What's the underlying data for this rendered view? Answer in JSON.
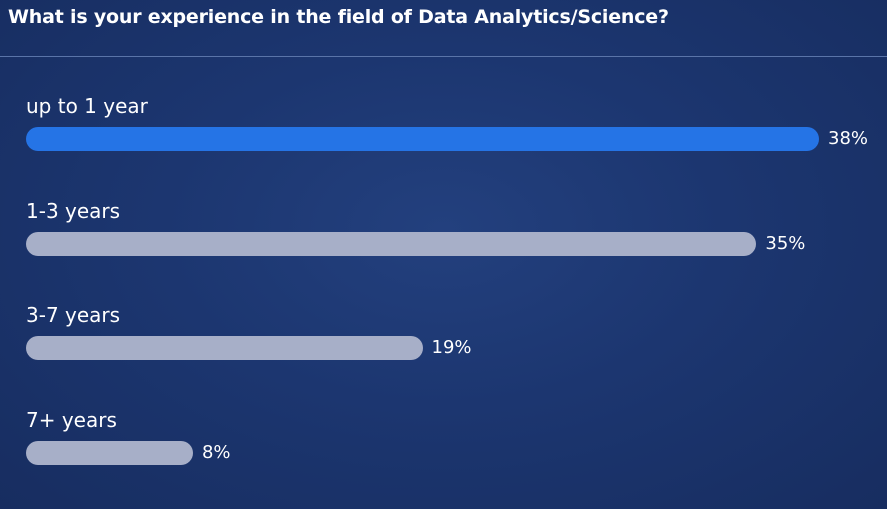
{
  "poll": {
    "question": "What is your experience in the field of Data Analytics/Science?"
  },
  "chart_data": {
    "type": "bar",
    "orientation": "horizontal",
    "categories": [
      "up to 1 year",
      "1-3 years",
      "3-7 years",
      "7+ years"
    ],
    "values": [
      38,
      35,
      19,
      8
    ],
    "value_labels": [
      "38%",
      "35%",
      "19%",
      "8%"
    ],
    "unit": "%",
    "title": "What is your experience in the field of Data Analytics/Science?",
    "highlight_color": "#2574e6",
    "bar_color": "#a7afc8",
    "grid": false
  }
}
